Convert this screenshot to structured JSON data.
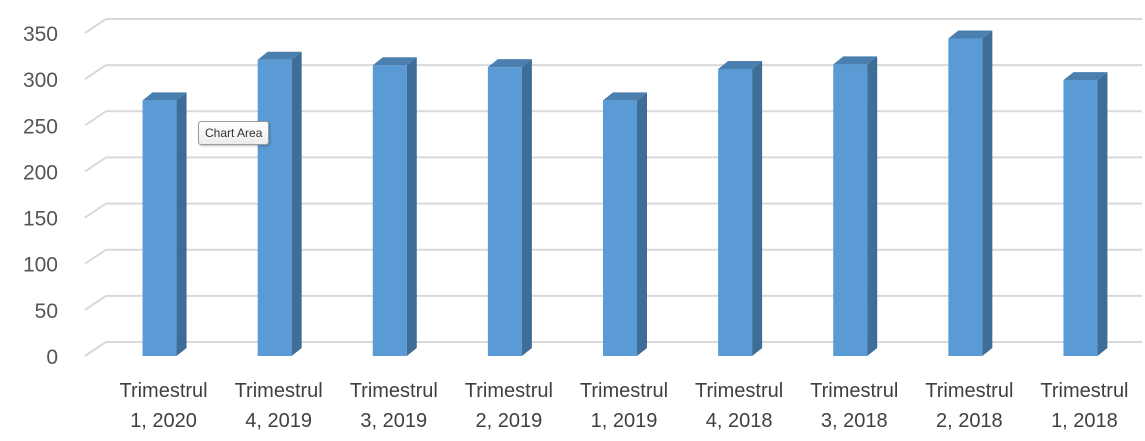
{
  "chart_data": {
    "type": "bar",
    "categories": [
      [
        "Trimestrul",
        "1, 2020"
      ],
      [
        "Trimestrul",
        "4, 2019"
      ],
      [
        "Trimestrul",
        "3, 2019"
      ],
      [
        "Trimestrul",
        "2, 2019"
      ],
      [
        "Trimestrul",
        "1, 2019"
      ],
      [
        "Trimestrul",
        "4, 2018"
      ],
      [
        "Trimestrul",
        "3, 2018"
      ],
      [
        "Trimestrul",
        "2, 2018"
      ],
      [
        "Trimestrul",
        "1, 2018"
      ]
    ],
    "values": [
      277,
      321,
      315,
      313,
      277,
      311,
      316,
      344,
      299
    ],
    "ylim": [
      0,
      350
    ],
    "yticks": [
      0,
      50,
      100,
      150,
      200,
      250,
      300,
      350
    ],
    "grid": true,
    "style": "3d-column",
    "colors": {
      "bar_front": "#5b9bd5",
      "bar_side": "#3e6d98",
      "bar_top": "#4a7fb0",
      "grid": "#d9d9d9"
    }
  },
  "tooltip": {
    "text": "Chart Area"
  }
}
